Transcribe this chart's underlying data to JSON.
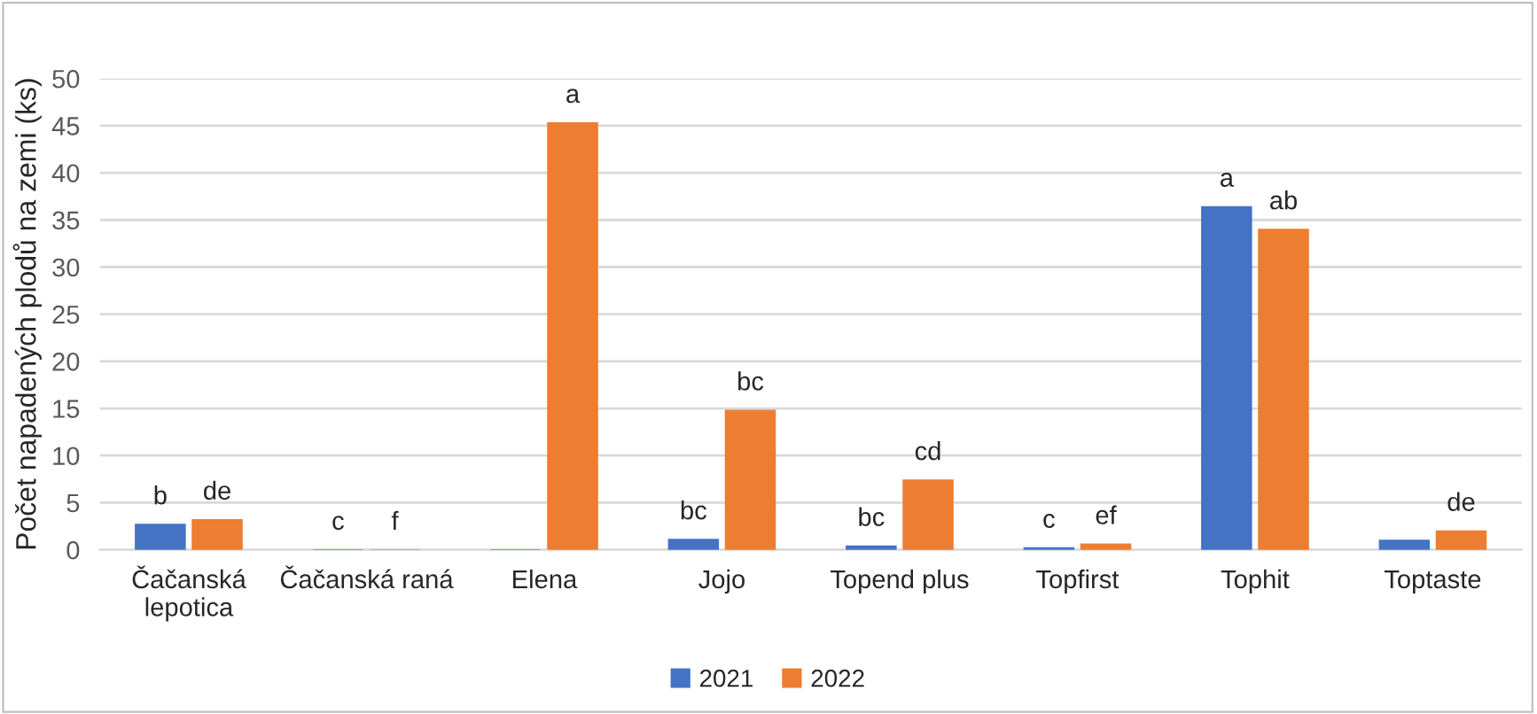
{
  "chart_data": {
    "type": "bar",
    "ylabel": "Počet napadených plodů na zemi (ks)",
    "categories": [
      "Čačanská\nlepotica",
      "Čačanská raná",
      "Elena",
      "Jojo",
      "Topend plus",
      "Topfirst",
      "Tophit",
      "Toptaste"
    ],
    "series": [
      {
        "name": "2021",
        "color": "#4472c4",
        "values": [
          2.7,
          0,
          0,
          1.1,
          0.4,
          0.2,
          36.4,
          1.0
        ],
        "value_labels": [
          "b",
          "c",
          null,
          "bc",
          "bc",
          "c",
          "a",
          null
        ]
      },
      {
        "name": "2022",
        "color": "#ed7d31",
        "values": [
          3.2,
          0,
          45.3,
          14.8,
          7.4,
          0.6,
          34.0,
          2.0
        ],
        "value_labels": [
          "de",
          "f",
          "a",
          "bc",
          "cd",
          "ef",
          "ab",
          "de"
        ]
      }
    ],
    "ylim": [
      0,
      50
    ],
    "yticks": [
      0,
      5,
      10,
      15,
      20,
      25,
      30,
      35,
      40,
      45,
      50
    ],
    "grid": "y",
    "legend": "bottom"
  }
}
